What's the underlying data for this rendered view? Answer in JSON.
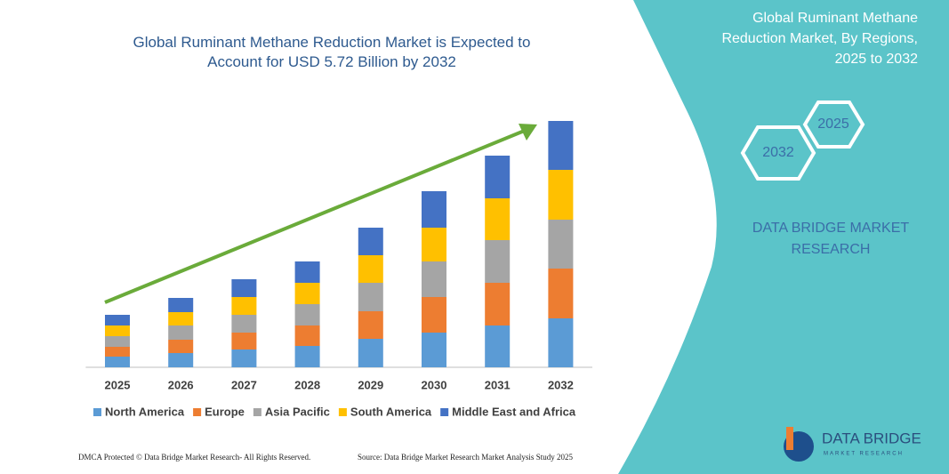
{
  "chart_data": {
    "type": "stacked_bar",
    "title": "Global Ruminant Methane Reduction Market is Expected to Account for USD 5.72 Billion by 2032",
    "categories": [
      "2025",
      "2026",
      "2027",
      "2028",
      "2029",
      "2030",
      "2031",
      "2032"
    ],
    "series": [
      {
        "name": "North America",
        "color": "#5b9bd5",
        "values": [
          12,
          16,
          20,
          24,
          32,
          39,
          47,
          55
        ]
      },
      {
        "name": "Europe",
        "color": "#ed7d31",
        "values": [
          11,
          15,
          19,
          23,
          31,
          40,
          48,
          56
        ]
      },
      {
        "name": "Asia Pacific",
        "color": "#a5a5a5",
        "values": [
          12,
          16,
          20,
          24,
          32,
          40,
          48,
          55
        ]
      },
      {
        "name": "South America",
        "color": "#ffc000",
        "values": [
          12,
          15,
          20,
          24,
          31,
          38,
          47,
          56
        ]
      },
      {
        "name": "Middle East and Africa",
        "color": "#4472c4",
        "values": [
          12,
          16,
          20,
          24,
          31,
          41,
          48,
          55
        ]
      }
    ],
    "ylim": [
      0,
      300
    ]
  },
  "panel": {
    "heading": "Global Ruminant Methane Reduction Market, By Regions, 2025 to 2032",
    "hexagons": [
      "2025",
      "2032"
    ],
    "brand": "DATA BRIDGE MARKET RESEARCH"
  },
  "logo": {
    "name": "DATA BRIDGE",
    "tagline": "MARKET RESEARCH"
  },
  "footer": {
    "left": "DMCA Protected © Data Bridge Market Research- All Rights Reserved.",
    "right": "Source: Data Bridge Market Research Market Analysis Study 2025"
  }
}
